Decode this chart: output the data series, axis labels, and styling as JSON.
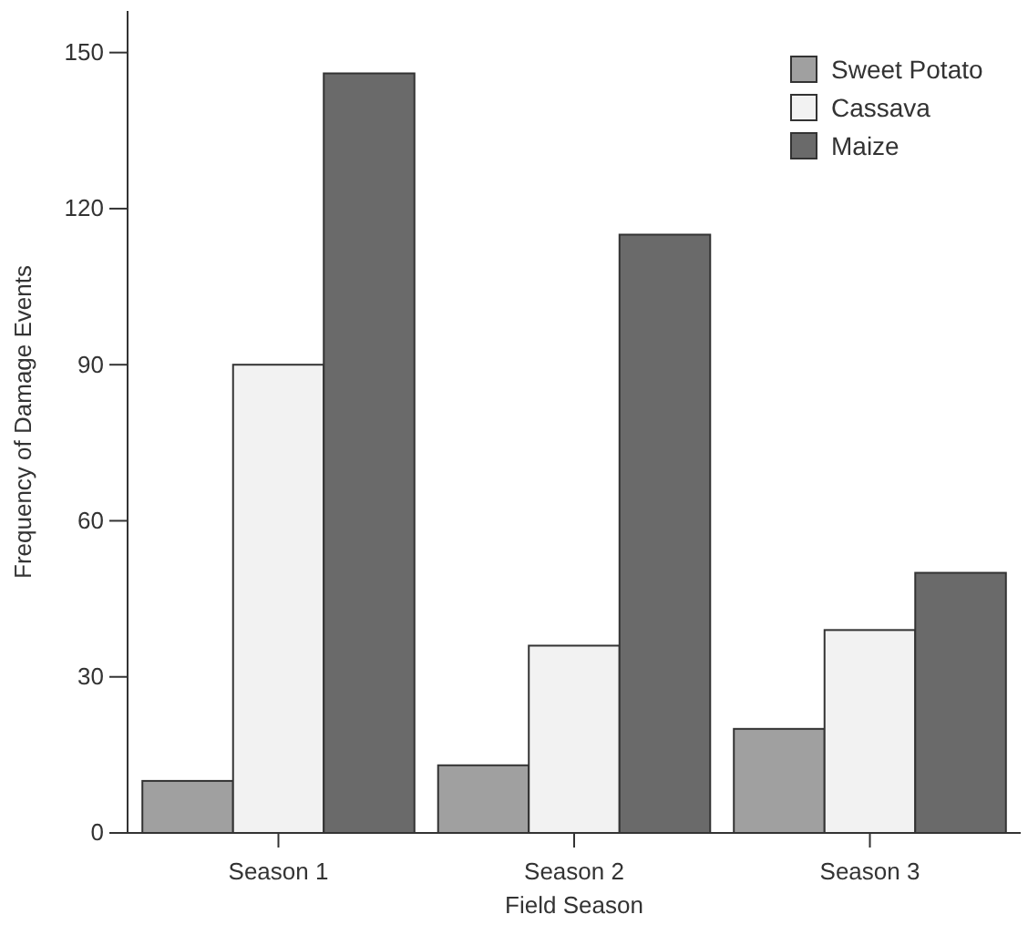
{
  "chart_data": {
    "type": "bar",
    "xlabel": "Field Season",
    "ylabel": "Frequency of Damage Events",
    "categories": [
      "Season 1",
      "Season 2",
      "Season 3"
    ],
    "series": [
      {
        "name": "Sweet Potato",
        "color": "#a0a0a0",
        "values": [
          10,
          13,
          20
        ]
      },
      {
        "name": "Cassava",
        "color": "#f2f2f2",
        "values": [
          90,
          36,
          39
        ]
      },
      {
        "name": "Maize",
        "color": "#6a6a6a",
        "values": [
          146,
          115,
          50
        ]
      }
    ],
    "ylim": [
      0,
      158
    ],
    "yticks": [
      0,
      30,
      60,
      90,
      120,
      150
    ],
    "legend": "top right",
    "grid": false
  }
}
